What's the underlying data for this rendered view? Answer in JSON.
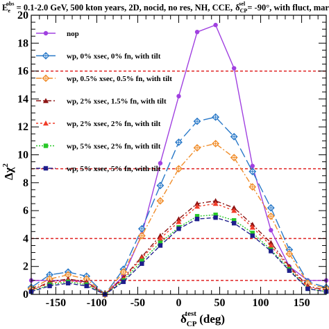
{
  "chart_data": {
    "type": "line",
    "title": "E_e^obs = 0.1-2.0 GeV, 500 kton years, 2D, nocid, no res, NH, CCE,  δ_CP^sel = -90°, with fluct, marg",
    "title_parts": {
      "e_base": "E",
      "e_sub": "e",
      "e_sup": "obs",
      "rest": " = 0.1-2.0 GeV, 500 kton years, 2D, nocid, no res, NH, CCE,",
      "delta": "δ",
      "delta_sub": "CP",
      "delta_sup": "sel",
      "tail": " = -90°, with fluct, marg"
    },
    "xlabel": "δ_CP^test (deg)",
    "xlabel_parts": {
      "base": "δ",
      "sub": "CP",
      "sup": "test",
      "unit": " (deg)"
    },
    "ylabel": "Δχ²",
    "ylabel_parts": {
      "base": "Δχ",
      "sup": "2"
    },
    "xlim": [
      -180,
      180
    ],
    "ylim": [
      0,
      20
    ],
    "xticks": [
      -150,
      -100,
      -50,
      0,
      50,
      100,
      150
    ],
    "yticks": [
      0,
      2,
      4,
      6,
      8,
      10,
      12,
      14,
      16,
      18,
      20
    ],
    "reference_lines": [
      1,
      4,
      9,
      16
    ],
    "x": [
      -180,
      -157.5,
      -135,
      -112.5,
      -90,
      -67.5,
      -45,
      -22.5,
      0,
      22.5,
      45,
      67.5,
      90,
      112.5,
      135,
      157.5,
      180
    ],
    "series": [
      {
        "name": "nop",
        "color": "#a040e0",
        "dash": "",
        "marker": "circle",
        "values": [
          1.0,
          1.0,
          1.0,
          0.9,
          0.0,
          1.3,
          4.3,
          9.4,
          14.2,
          18.8,
          19.3,
          16.2,
          9.2,
          4.6,
          2.0,
          1.0,
          1.0
        ]
      },
      {
        "name": "wp, 0% xsec, 0% fn, with tilt",
        "color": "#2878c8",
        "dash": "14,5",
        "marker": "diamond-open",
        "values": [
          0.5,
          1.4,
          1.6,
          1.3,
          0.0,
          1.8,
          4.7,
          7.8,
          10.9,
          12.4,
          12.7,
          11.3,
          8.8,
          6.2,
          3.2,
          0.9,
          0.5
        ]
      },
      {
        "name": "wp, 0.5% xsec, 0.5% fn, with tilt",
        "color": "#f08c28",
        "dash": "8,3,2,3",
        "marker": "diamond-open",
        "values": [
          0.4,
          1.1,
          1.4,
          1.1,
          0.0,
          1.6,
          4.2,
          6.7,
          9.0,
          10.5,
          10.8,
          9.8,
          7.7,
          5.6,
          2.9,
          0.8,
          0.4
        ]
      },
      {
        "name": "wp, 2% xsec, 1.5% fn, with tilt",
        "color": "#8c1414",
        "dash": "7,3,2,3",
        "marker": "triangle",
        "values": [
          0.3,
          0.9,
          1.1,
          0.9,
          0.0,
          1.2,
          2.7,
          4.2,
          5.4,
          6.5,
          6.7,
          6.2,
          5.0,
          3.7,
          2.0,
          0.6,
          0.3
        ]
      },
      {
        "name": "wp, 2% xsec, 2% fn, with tilt",
        "color": "#f03c28",
        "dash": "3,3",
        "marker": "triangle",
        "values": [
          0.3,
          0.8,
          1.0,
          0.8,
          0.0,
          1.1,
          2.6,
          4.0,
          5.2,
          6.3,
          6.5,
          6.0,
          4.8,
          3.5,
          1.9,
          0.5,
          0.3
        ]
      },
      {
        "name": "wp, 5% xsec, 2% fn, with tilt",
        "color": "#28c828",
        "dash": "2,2",
        "marker": "square",
        "values": [
          0.2,
          0.7,
          0.9,
          0.7,
          0.0,
          1.0,
          2.4,
          3.7,
          4.8,
          5.6,
          5.7,
          5.3,
          4.4,
          3.2,
          1.8,
          0.4,
          0.2
        ]
      },
      {
        "name": "wp, 5% xsec, 5% fn, with tilt",
        "color": "#1e1e8c",
        "dash": "6,3",
        "marker": "square",
        "values": [
          0.2,
          0.6,
          0.8,
          0.6,
          0.0,
          0.9,
          2.2,
          3.5,
          4.7,
          5.4,
          5.5,
          5.1,
          4.2,
          3.1,
          1.7,
          0.4,
          0.2
        ]
      }
    ],
    "legend": "top-left",
    "grid": false
  }
}
